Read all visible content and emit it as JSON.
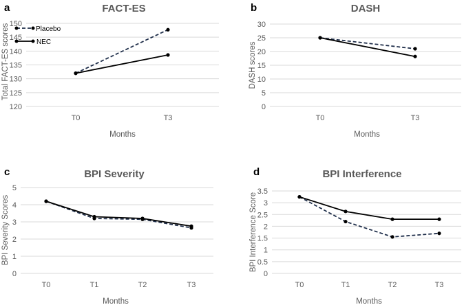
{
  "legend": {
    "placebo": "Placebo",
    "nec": "NEC"
  },
  "chart_data": [
    {
      "panel": "a",
      "type": "line",
      "title": "FACT-ES",
      "ylabel": "Total FACT-ES scores",
      "xlabel": "Months",
      "categories": [
        "T0",
        "T3"
      ],
      "ylim": [
        120,
        150
      ],
      "yticks": [
        120,
        125,
        130,
        135,
        140,
        145,
        150
      ],
      "legend_position": "top-left",
      "series": [
        {
          "name": "Placebo",
          "values": [
            132.0,
            147.7
          ]
        },
        {
          "name": "NEC",
          "values": [
            132.0,
            138.6
          ]
        }
      ]
    },
    {
      "panel": "b",
      "type": "line",
      "title": "DASH",
      "ylabel": "DASH scores",
      "xlabel": "Months",
      "categories": [
        "T0",
        "T3"
      ],
      "ylim": [
        0,
        30
      ],
      "yticks": [
        0,
        5,
        10,
        15,
        20,
        25,
        30
      ],
      "series": [
        {
          "name": "Placebo",
          "values": [
            25.0,
            21.0
          ]
        },
        {
          "name": "NEC",
          "values": [
            25.0,
            18.2
          ]
        }
      ]
    },
    {
      "panel": "c",
      "type": "line",
      "title": "BPI Severity",
      "ylabel": "BPI Severity Scores",
      "xlabel": "Months",
      "categories": [
        "T0",
        "T1",
        "T2",
        "T3"
      ],
      "ylim": [
        0,
        5
      ],
      "yticks": [
        0,
        1,
        2,
        3,
        4,
        5
      ],
      "series": [
        {
          "name": "Placebo",
          "values": [
            4.2,
            3.2,
            3.15,
            2.65
          ]
        },
        {
          "name": "NEC",
          "values": [
            4.2,
            3.3,
            3.2,
            2.75
          ]
        }
      ]
    },
    {
      "panel": "d",
      "type": "line",
      "title": "BPI Interference",
      "ylabel": "BPI Interference Score",
      "xlabel": "Months",
      "categories": [
        "T0",
        "T1",
        "T2",
        "T3"
      ],
      "ylim": [
        0,
        3.5
      ],
      "yticks": [
        0,
        0.5,
        1,
        1.5,
        2,
        2.5,
        3,
        3.5
      ],
      "series": [
        {
          "name": "Placebo",
          "values": [
            3.25,
            2.2,
            1.55,
            1.7
          ]
        },
        {
          "name": "NEC",
          "values": [
            3.25,
            2.63,
            2.3,
            2.3
          ]
        }
      ]
    }
  ]
}
